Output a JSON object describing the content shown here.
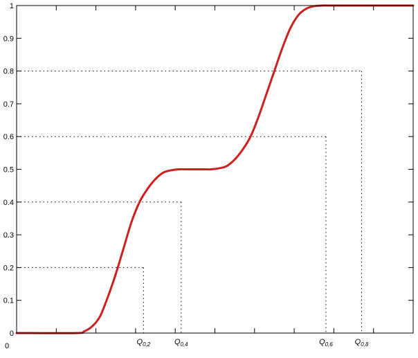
{
  "chart_data": {
    "type": "line",
    "title": "",
    "xlabel": "",
    "ylabel": "",
    "ylim": [
      0,
      1
    ],
    "xlim": [
      0,
      100
    ],
    "y_ticks": [
      "0",
      "0.1",
      "0.2",
      "0.3",
      "0.4",
      "0.5",
      "0.6",
      "0.7",
      "0.8",
      "0.9",
      "1"
    ],
    "x_tick_label": "0",
    "grid": false,
    "series": [
      {
        "color": "#cc1f1f",
        "x": [
          0,
          15,
          17,
          19,
          21,
          23,
          25,
          27,
          29,
          31,
          33,
          35,
          37,
          39,
          41,
          43,
          45,
          47,
          49,
          51,
          53,
          55,
          57,
          59,
          61,
          63,
          65,
          67,
          69,
          71,
          73,
          75,
          77,
          79,
          81,
          83,
          85,
          87,
          100
        ],
        "y": [
          0,
          0,
          0.005,
          0.02,
          0.05,
          0.11,
          0.18,
          0.26,
          0.34,
          0.4,
          0.44,
          0.47,
          0.49,
          0.497,
          0.5,
          0.5,
          0.5,
          0.5,
          0.5,
          0.503,
          0.51,
          0.53,
          0.56,
          0.6,
          0.66,
          0.73,
          0.8,
          0.87,
          0.93,
          0.97,
          0.99,
          0.998,
          1,
          1,
          1,
          1,
          1,
          1,
          1
        ]
      }
    ],
    "quantiles": [
      {
        "label": "Q",
        "sub": "0,2",
        "p": 0.2,
        "x": 32.0
      },
      {
        "label": "Q",
        "sub": "0,4",
        "p": 0.4,
        "x": 41.5
      },
      {
        "label": "Q",
        "sub": "0,6",
        "p": 0.6,
        "x": 78.0
      },
      {
        "label": "Q",
        "sub": "0,8",
        "p": 0.8,
        "x": 87.0
      }
    ]
  }
}
